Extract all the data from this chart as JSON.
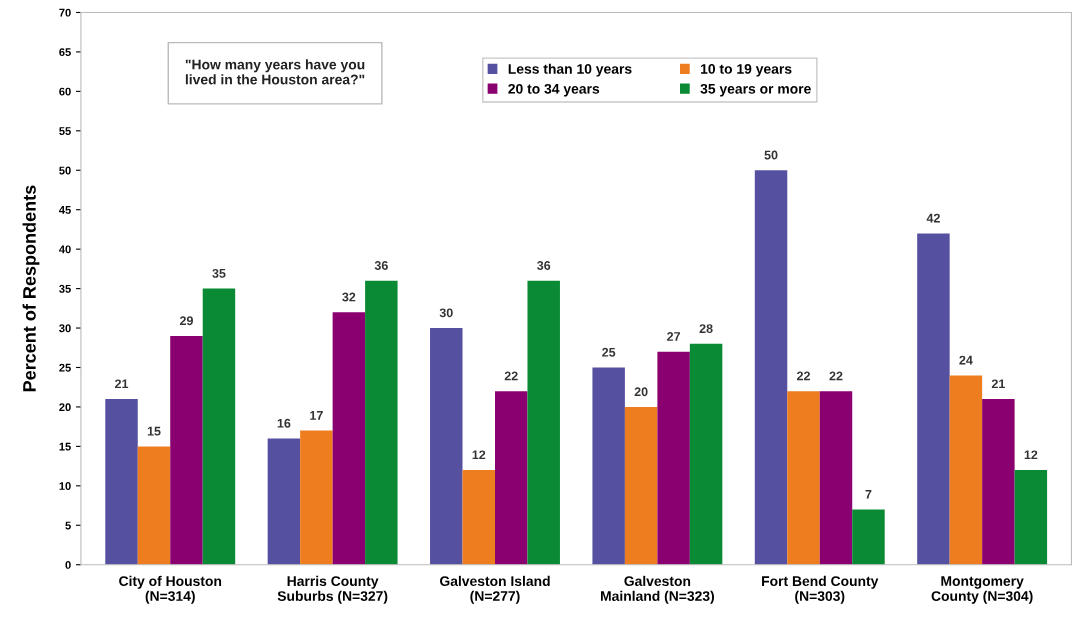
{
  "chart_data": {
    "type": "bar",
    "ylabel": "Percent of Respondents",
    "categories": [
      "City of Houston\n(N=314)",
      "Harris County\nSuburbs (N=327)",
      "Galveston Island\n(N=277)",
      "Galveston\nMainland (N=323)",
      "Fort Bend County\n(N=303)",
      "Montgomery\nCounty (N=304)"
    ],
    "series": [
      {
        "name": "Less than 10 years",
        "color": "#5550a0",
        "values": [
          21,
          16,
          30,
          25,
          50,
          42
        ]
      },
      {
        "name": "10 to 19 years",
        "color": "#ee7d1f",
        "values": [
          15,
          17,
          12,
          20,
          22,
          24
        ]
      },
      {
        "name": "20 to 34 years",
        "color": "#8a0070",
        "values": [
          29,
          32,
          22,
          27,
          22,
          21
        ]
      },
      {
        "name": "35 years or more",
        "color": "#0a8a35",
        "values": [
          35,
          36,
          36,
          28,
          7,
          12
        ]
      }
    ],
    "ylim": [
      0,
      70
    ],
    "yticks": [
      0,
      5,
      10,
      15,
      20,
      25,
      30,
      35,
      40,
      45,
      50,
      55,
      60,
      65,
      70
    ],
    "grid": false,
    "legend": "top right",
    "data_labels": true,
    "annotations": [
      "\"How many years have you\nlived in the Houston area?\""
    ]
  }
}
